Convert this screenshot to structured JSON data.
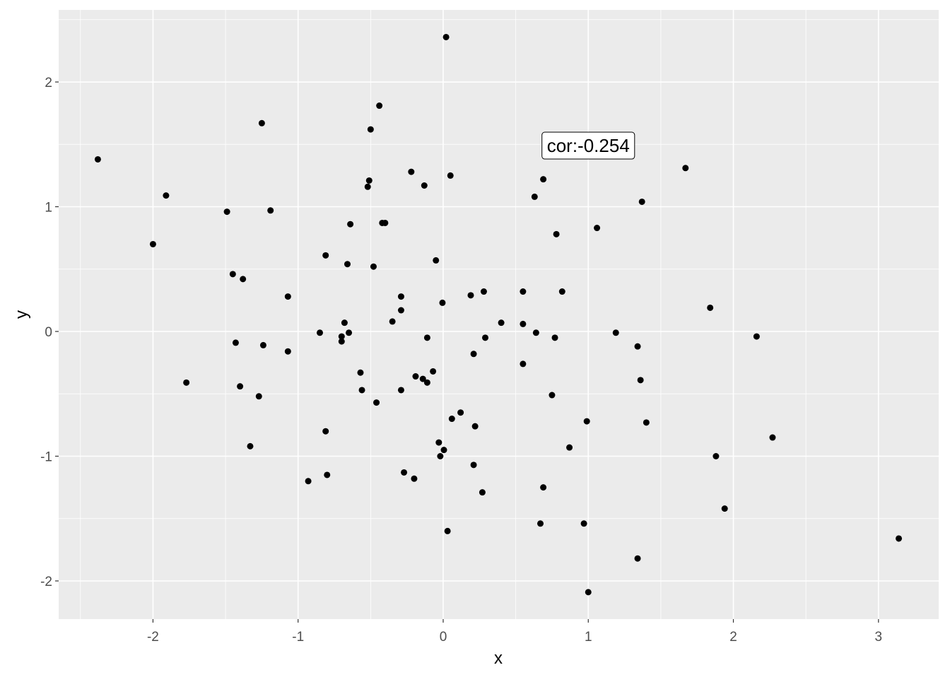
{
  "chart_data": {
    "type": "scatter",
    "title": "",
    "xlabel": "x",
    "ylabel": "y",
    "xlim": [
      -2.65,
      3.415
    ],
    "ylim": [
      -2.306,
      2.578
    ],
    "x_ticks": [
      -2,
      -1,
      0,
      1,
      2,
      3
    ],
    "x_tick_labels": [
      "-2",
      "-1",
      "0",
      "1",
      "2",
      "3"
    ],
    "y_ticks": [
      -2,
      -1,
      0,
      1,
      2
    ],
    "y_tick_labels": [
      "-2",
      "-1",
      "0",
      "1",
      "2"
    ],
    "grid": true,
    "panel_background": "#EBEBEB",
    "point_color": "#000000",
    "annotation": {
      "text": "cor:-0.254",
      "x": 1.0,
      "y": 1.49
    },
    "points": [
      [
        0.02,
        2.36
      ],
      [
        -2.38,
        1.38
      ],
      [
        -1.91,
        1.09
      ],
      [
        -2.0,
        0.7
      ],
      [
        -1.49,
        0.96
      ],
      [
        -1.25,
        1.67
      ],
      [
        -1.19,
        0.97
      ],
      [
        -1.45,
        0.46
      ],
      [
        -1.38,
        0.42
      ],
      [
        -1.07,
        0.28
      ],
      [
        -1.43,
        -0.09
      ],
      [
        -1.24,
        -0.11
      ],
      [
        -1.07,
        -0.16
      ],
      [
        -1.77,
        -0.41
      ],
      [
        -1.4,
        -0.44
      ],
      [
        -1.27,
        -0.52
      ],
      [
        -1.33,
        -0.92
      ],
      [
        -0.93,
        -1.2
      ],
      [
        -0.8,
        -1.15
      ],
      [
        -0.81,
        -0.8
      ],
      [
        -0.85,
        -0.01
      ],
      [
        -0.81,
        0.61
      ],
      [
        -0.66,
        0.54
      ],
      [
        -0.64,
        0.86
      ],
      [
        -0.44,
        1.81
      ],
      [
        -0.5,
        1.62
      ],
      [
        -0.51,
        1.21
      ],
      [
        -0.52,
        1.16
      ],
      [
        -0.42,
        0.87
      ],
      [
        -0.4,
        0.87
      ],
      [
        -0.48,
        0.52
      ],
      [
        -0.22,
        1.28
      ],
      [
        -0.13,
        1.17
      ],
      [
        0.05,
        1.25
      ],
      [
        -0.05,
        0.57
      ],
      [
        -0.29,
        0.28
      ],
      [
        -0.29,
        0.17
      ],
      [
        -0.35,
        0.08
      ],
      [
        -0.005,
        0.23
      ],
      [
        -0.68,
        0.07
      ],
      [
        -0.7,
        -0.04
      ],
      [
        -0.7,
        -0.08
      ],
      [
        -0.65,
        -0.01
      ],
      [
        -0.11,
        -0.05
      ],
      [
        -0.57,
        -0.33
      ],
      [
        -0.56,
        -0.47
      ],
      [
        -0.46,
        -0.57
      ],
      [
        -0.29,
        -0.47
      ],
      [
        -0.19,
        -0.36
      ],
      [
        -0.14,
        -0.38
      ],
      [
        -0.11,
        -0.41
      ],
      [
        -0.07,
        -0.32
      ],
      [
        -0.03,
        -0.89
      ],
      [
        0.005,
        -0.95
      ],
      [
        -0.02,
        -1.0
      ],
      [
        0.06,
        -0.7
      ],
      [
        0.12,
        -0.65
      ],
      [
        0.22,
        -0.76
      ],
      [
        0.21,
        -1.07
      ],
      [
        0.27,
        -1.29
      ],
      [
        0.03,
        -1.6
      ],
      [
        -0.27,
        -1.13
      ],
      [
        -0.2,
        -1.18
      ],
      [
        0.19,
        0.29
      ],
      [
        0.28,
        0.32
      ],
      [
        0.21,
        -0.18
      ],
      [
        0.29,
        -0.05
      ],
      [
        0.4,
        0.07
      ],
      [
        0.55,
        0.32
      ],
      [
        0.55,
        0.06
      ],
      [
        0.55,
        -0.26
      ],
      [
        0.64,
        -0.01
      ],
      [
        0.63,
        1.08
      ],
      [
        0.69,
        1.22
      ],
      [
        0.78,
        0.78
      ],
      [
        0.82,
        0.32
      ],
      [
        0.77,
        -0.05
      ],
      [
        0.75,
        -0.51
      ],
      [
        0.69,
        -1.25
      ],
      [
        0.67,
        -1.54
      ],
      [
        0.87,
        -0.93
      ],
      [
        0.99,
        -0.72
      ],
      [
        0.97,
        -1.54
      ],
      [
        1.0,
        -2.09
      ],
      [
        1.06,
        0.83
      ],
      [
        1.19,
        -0.01
      ],
      [
        1.34,
        -0.12
      ],
      [
        1.36,
        -0.39
      ],
      [
        1.4,
        -0.73
      ],
      [
        1.34,
        -1.82
      ],
      [
        1.37,
        1.04
      ],
      [
        1.67,
        1.31
      ],
      [
        1.84,
        0.19
      ],
      [
        1.88,
        -1.0
      ],
      [
        1.94,
        -1.42
      ],
      [
        2.16,
        -0.04
      ],
      [
        2.27,
        -0.85
      ],
      [
        3.14,
        -1.66
      ]
    ]
  }
}
